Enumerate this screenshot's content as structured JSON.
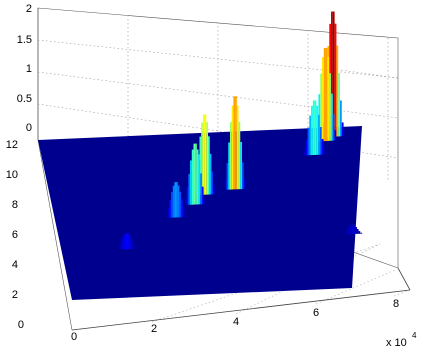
{
  "chart_data": {
    "type": "surface3d",
    "title": "",
    "xlabel": "",
    "ylabel": "",
    "zlabel": "",
    "x_ticks": [
      "0",
      "2",
      "4",
      "6",
      "8"
    ],
    "x_multiplier": "x 10",
    "x_multiplier_exponent": "4",
    "y_ticks": [
      "0",
      "2",
      "4",
      "6",
      "8",
      "10",
      "12"
    ],
    "z_ticks": [
      "0",
      "0.5",
      "1",
      "1.5",
      "2"
    ],
    "xlim": [
      0,
      90000
    ],
    "ylim": [
      0,
      12
    ],
    "zlim": [
      0,
      2
    ],
    "grid": true,
    "colormap": "jet",
    "base_color": "#00008f",
    "peaks": [
      {
        "x": 20000,
        "y": 3.6,
        "z": 0.25
      },
      {
        "x": 36000,
        "y": 5.8,
        "z": 0.55
      },
      {
        "x": 42000,
        "y": 6.7,
        "z": 0.95
      },
      {
        "x": 45000,
        "y": 7.4,
        "z": 1.25
      },
      {
        "x": 54000,
        "y": 7.7,
        "z": 1.45
      },
      {
        "x": 77000,
        "y": 10.0,
        "z": 0.85
      },
      {
        "x": 80000,
        "y": 11.0,
        "z": 1.45
      },
      {
        "x": 82000,
        "y": 11.3,
        "z": 1.95
      },
      {
        "x": 89000,
        "y": 4.0,
        "z": 0.15
      }
    ]
  }
}
